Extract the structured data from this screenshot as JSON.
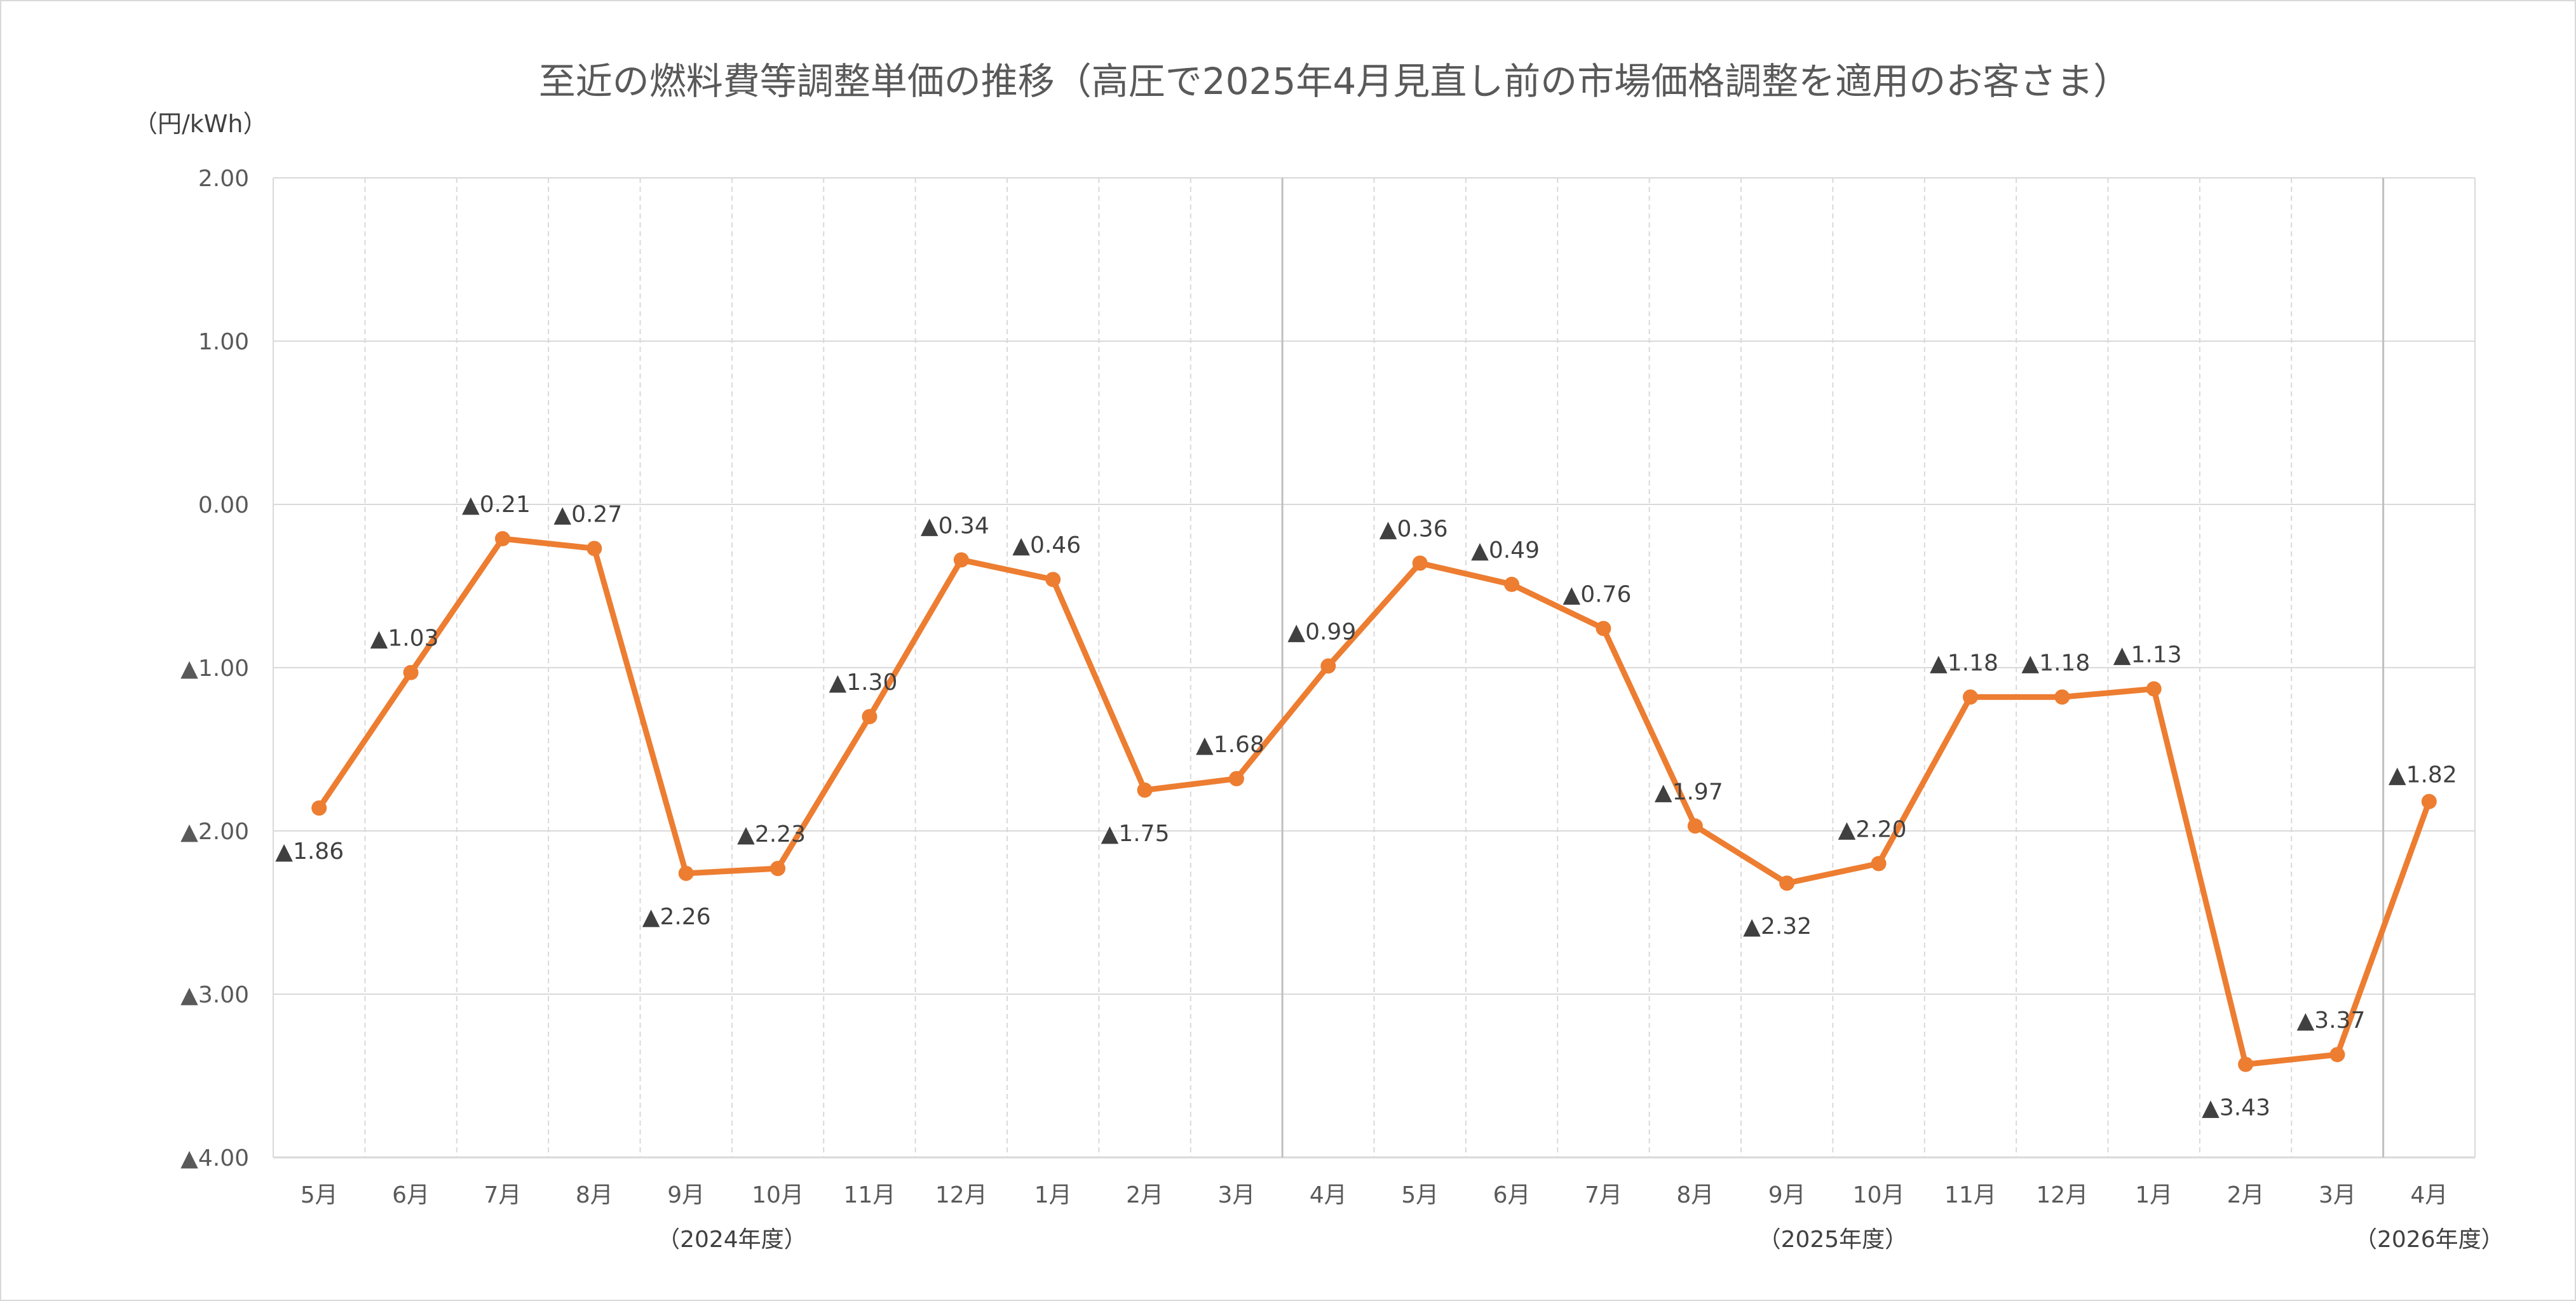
{
  "chart_data": {
    "type": "line",
    "title": "至近の燃料費等調整単価の推移（高圧で2025年4月見直し前の市場価格調整を適用のお客さま）",
    "unit_label": "（円/kWh）",
    "ylim": [
      -4,
      2
    ],
    "y_ticks": [
      {
        "value": 2,
        "label": "2.00"
      },
      {
        "value": 1,
        "label": "1.00"
      },
      {
        "value": 0,
        "label": "0.00"
      },
      {
        "value": -1,
        "label": "▲1.00"
      },
      {
        "value": -2,
        "label": "▲2.00"
      },
      {
        "value": -3,
        "label": "▲3.00"
      },
      {
        "value": -4,
        "label": "▲4.00"
      }
    ],
    "categories": [
      "5月",
      "6月",
      "7月",
      "8月",
      "9月",
      "10月",
      "11月",
      "12月",
      "1月",
      "2月",
      "3月",
      "4月",
      "5月",
      "6月",
      "7月",
      "8月",
      "9月",
      "10月",
      "11月",
      "12月",
      "1月",
      "2月",
      "3月",
      "4月"
    ],
    "values": [
      -1.86,
      -1.03,
      -0.21,
      -0.27,
      -2.26,
      -2.23,
      -1.3,
      -0.34,
      -0.46,
      -1.75,
      -1.68,
      -0.99,
      -0.36,
      -0.49,
      -0.76,
      -1.97,
      -2.32,
      -2.2,
      -1.18,
      -1.18,
      -1.13,
      -3.43,
      -3.37,
      -1.82
    ],
    "data_labels": [
      "▲1.86",
      "▲1.03",
      "▲0.21",
      "▲0.27",
      "▲2.26",
      "▲2.23",
      "▲1.30",
      "▲0.34",
      "▲0.46",
      "▲1.75",
      "▲1.68",
      "▲0.99",
      "▲0.36",
      "▲0.49",
      "▲0.76",
      "▲1.97",
      "▲2.32",
      "▲2.20",
      "▲1.18",
      "▲1.18",
      "▲1.13",
      "▲3.43",
      "▲3.37",
      "▲1.82"
    ],
    "fiscal_year_labels": [
      {
        "label": "（2024年度）",
        "category_index": 4.5
      },
      {
        "label": "（2025年度）",
        "category_index": 16.5
      },
      {
        "label": "（2026年度）",
        "category_index": 23
      }
    ],
    "grid": true,
    "legend": "none",
    "colors": {
      "line": "#ed7d31",
      "grid": "#d9d9d9",
      "vertical_grid": "#d9d9d9",
      "fy_divider": "#bfbfbf",
      "text": "#595959"
    }
  }
}
